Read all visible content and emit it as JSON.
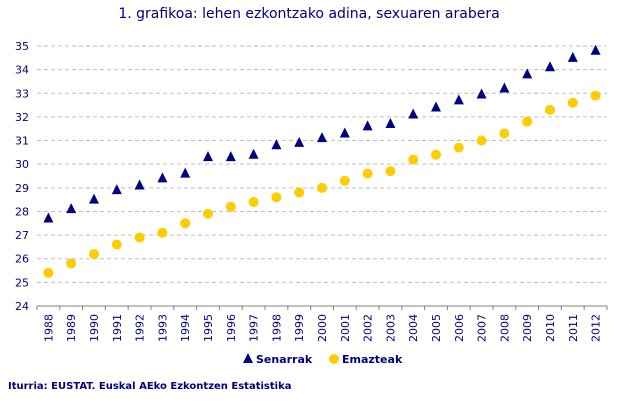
{
  "chart_data": {
    "type": "scatter",
    "title": "1. grafikoa: lehen ezkontzako adina, sexuaren arabera",
    "xlabel": "",
    "ylabel": "",
    "ylim": [
      24,
      35
    ],
    "yticks": [
      24,
      25,
      26,
      27,
      28,
      29,
      30,
      31,
      32,
      33,
      34,
      35
    ],
    "grid": true,
    "legend": "bottom",
    "categories": [
      "1988",
      "1989",
      "1990",
      "1991",
      "1992",
      "1993",
      "1994",
      "1995",
      "1996",
      "1997",
      "1998",
      "1999",
      "2000",
      "2001",
      "2002",
      "2003",
      "2004",
      "2005",
      "2006",
      "2007",
      "2008",
      "2009",
      "2010",
      "2011",
      "2012"
    ],
    "series": [
      {
        "name": "Senarrak",
        "marker": "triangle",
        "color": "#000080",
        "values": [
          27.7,
          28.1,
          28.5,
          28.9,
          29.1,
          29.4,
          29.6,
          30.3,
          30.3,
          30.4,
          30.8,
          30.9,
          31.1,
          31.3,
          31.6,
          31.7,
          32.1,
          32.4,
          32.7,
          32.95,
          33.2,
          33.8,
          34.1,
          34.5,
          34.8
        ]
      },
      {
        "name": "Emazteak",
        "marker": "circle",
        "color": "#FFCC00",
        "values": [
          25.4,
          25.8,
          26.2,
          26.6,
          26.9,
          27.1,
          27.5,
          27.9,
          28.2,
          28.4,
          28.6,
          28.8,
          29.0,
          29.3,
          29.6,
          29.7,
          30.2,
          30.4,
          30.7,
          31.0,
          31.3,
          31.8,
          32.3,
          32.6,
          32.9
        ]
      }
    ]
  },
  "source": "Iturria: EUSTAT. Euskal AEko Ezkontzen Estatistika"
}
